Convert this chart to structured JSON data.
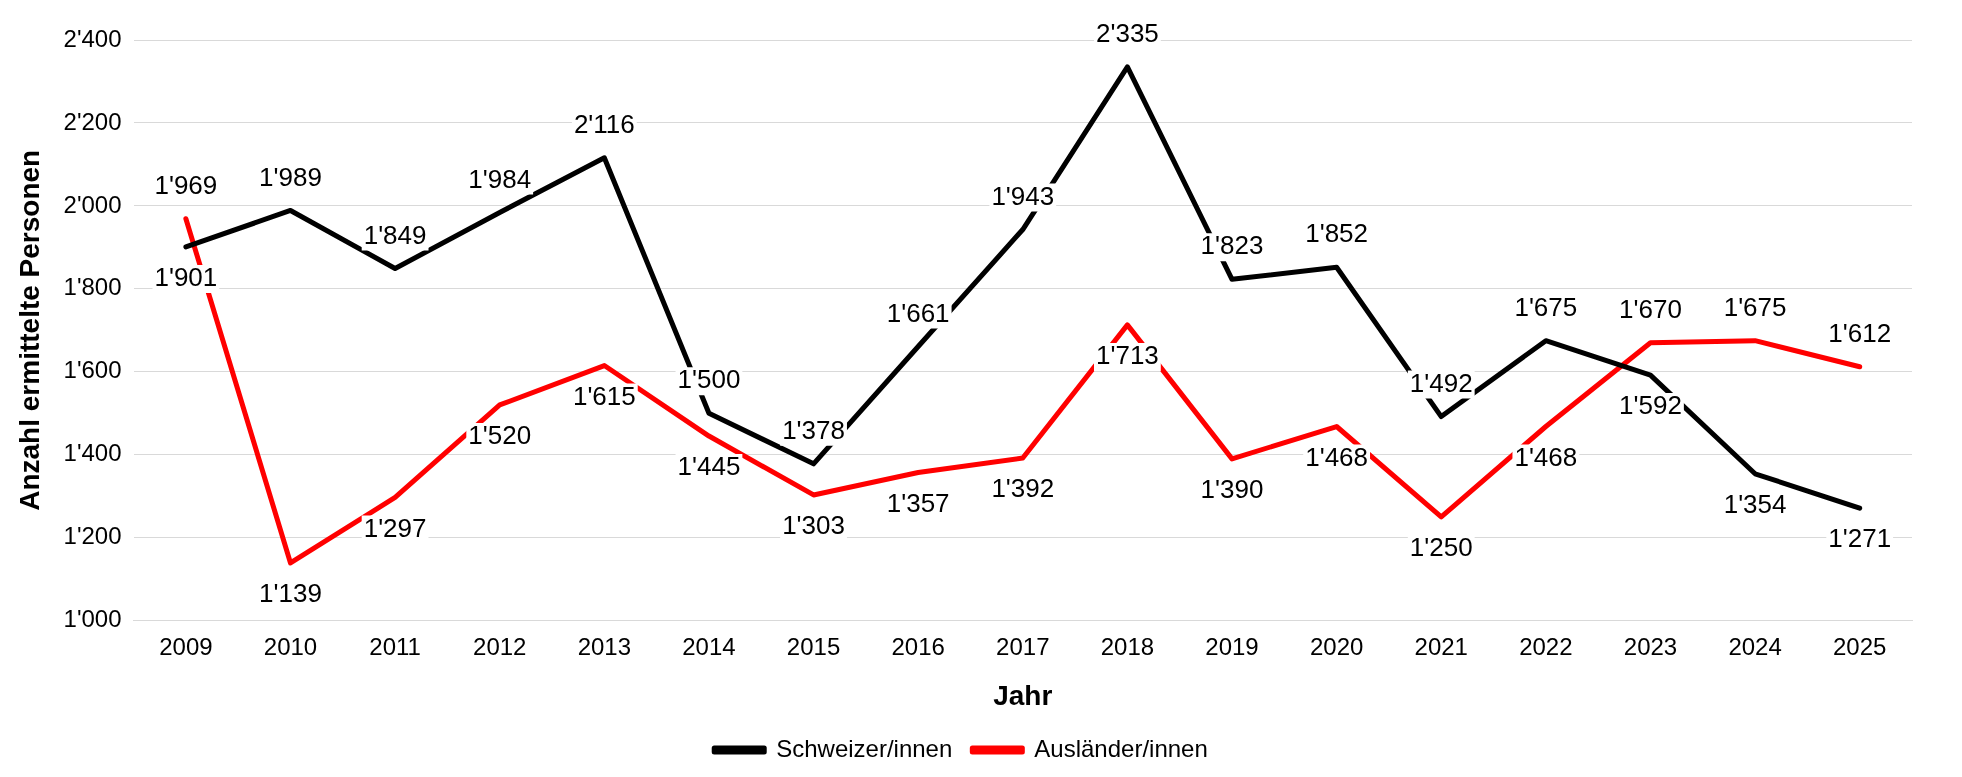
{
  "chart_data": {
    "type": "line",
    "xlabel": "Jahr",
    "ylabel": "Anzahl ermittelte Personen",
    "categories": [
      "2009",
      "2010",
      "2011",
      "2012",
      "2013",
      "2014",
      "2015",
      "2016",
      "2017",
      "2018",
      "2019",
      "2020",
      "2021",
      "2022",
      "2023",
      "2024",
      "2025"
    ],
    "series": [
      {
        "name": "Schweizer/innen",
        "color": "#000000",
        "values": [
          1901,
          1989,
          1849,
          1984,
          2116,
          1500,
          1378,
          1661,
          1943,
          2335,
          1823,
          1852,
          1492,
          1675,
          1592,
          1354,
          1271
        ],
        "value_labels": [
          "1'901",
          "1'989",
          "1'849",
          "1'984",
          "2'116",
          "1'500",
          "1'378",
          "1'661",
          "1'943",
          "2'335",
          "1'823",
          "1'852",
          "1'492",
          "1'675",
          "1'592",
          "1'354",
          "1'271"
        ]
      },
      {
        "name": "Ausländer/innen",
        "color": "#ff0000",
        "values": [
          1969,
          1139,
          1297,
          1520,
          1615,
          1445,
          1303,
          1357,
          1392,
          1713,
          1390,
          1468,
          1250,
          1468,
          1670,
          1675,
          1612
        ],
        "value_labels": [
          "1'969",
          "1'139",
          "1'297",
          "1'520",
          "1'615",
          "1'445",
          "1'303",
          "1'357",
          "1'392",
          "1'713",
          "1'390",
          "1'468",
          "1'250",
          "1'468",
          "1'670",
          "1'675",
          "1'612"
        ]
      }
    ],
    "ylim": [
      1000,
      2400
    ],
    "yticks": [
      {
        "value": 1000,
        "label": "1'000"
      },
      {
        "value": 1200,
        "label": "1'200"
      },
      {
        "value": 1400,
        "label": "1'400"
      },
      {
        "value": 1600,
        "label": "1'600"
      },
      {
        "value": 1800,
        "label": "1'800"
      },
      {
        "value": 2000,
        "label": "2'000"
      },
      {
        "value": 2200,
        "label": "2'200"
      },
      {
        "value": 2400,
        "label": "2'400"
      }
    ],
    "grid": "y",
    "legend": "bottom",
    "marker": "none",
    "line_style": "solid"
  }
}
